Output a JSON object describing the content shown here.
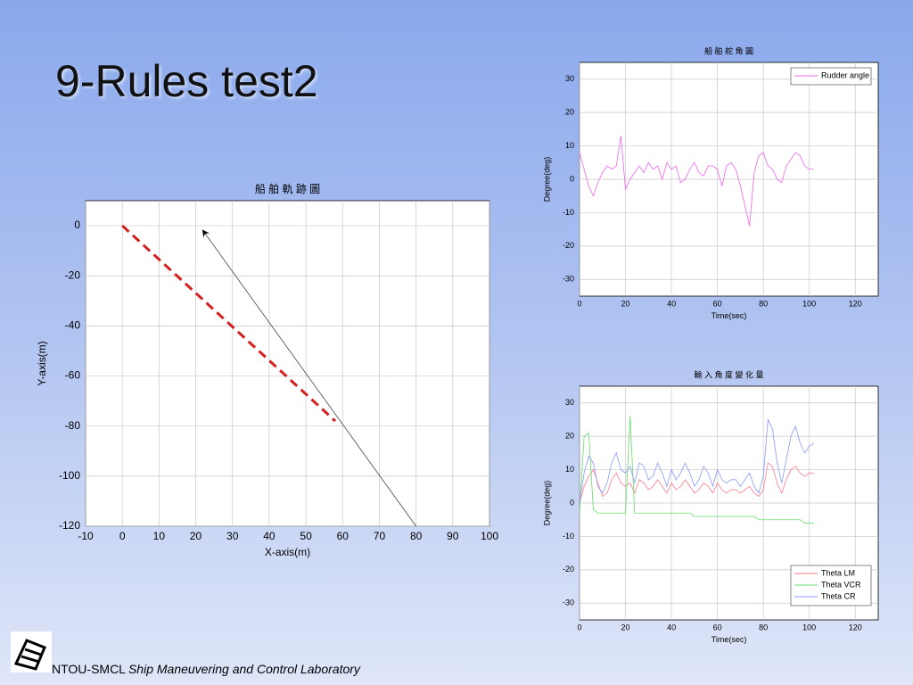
{
  "slide": {
    "title": "9-Rules test2",
    "footer_org": "NTOU-SMCL",
    "footer_lab": "Ship Maneuvering and Control Laboratory"
  },
  "chart_data": [
    {
      "type": "line",
      "title": "船 舶 軌 跡 圖",
      "xlabel": "X-axis(m)",
      "ylabel": "Y-axis(m)",
      "xlim": [
        -10,
        100
      ],
      "xticks": [
        -10,
        0,
        10,
        20,
        30,
        40,
        50,
        60,
        70,
        80,
        90,
        100
      ],
      "ylim": [
        -120,
        10
      ],
      "yticks": [
        -120,
        -100,
        -80,
        -60,
        -40,
        -20,
        0
      ],
      "grid": true,
      "series": [
        {
          "color": "#d62020",
          "line_style": "dashed",
          "x": [
            0,
            58
          ],
          "values": [
            0,
            -78
          ]
        },
        {
          "color": "#444444",
          "line_style": "solid",
          "arrow": true,
          "x": [
            80,
            22
          ],
          "values": [
            -120,
            -2
          ]
        }
      ]
    },
    {
      "type": "line",
      "title": "船 舶 舵 角 圖",
      "xlabel": "Time(sec)",
      "ylabel": "Degree(deg)",
      "xlim": [
        0,
        130
      ],
      "xticks": [
        0,
        20,
        40,
        60,
        80,
        100,
        120
      ],
      "ylim": [
        -35,
        35
      ],
      "yticks": [
        -30,
        -20,
        -10,
        0,
        10,
        20,
        30
      ],
      "grid": true,
      "legend": "top-right",
      "x": [
        0,
        2,
        4,
        6,
        8,
        10,
        12,
        14,
        16,
        18,
        20,
        22,
        24,
        26,
        28,
        30,
        32,
        34,
        36,
        38,
        40,
        42,
        44,
        46,
        48,
        50,
        52,
        54,
        56,
        58,
        60,
        62,
        64,
        66,
        68,
        70,
        72,
        74,
        76,
        78,
        80,
        82,
        84,
        86,
        88,
        90,
        92,
        94,
        96,
        98,
        100,
        102
      ],
      "series": [
        {
          "name": "Rudder angle",
          "color": "#ee66ee",
          "values": [
            8,
            3,
            -2,
            -5,
            -1,
            2,
            4,
            3,
            4,
            13,
            -3,
            0,
            2,
            4,
            2,
            5,
            3,
            4,
            0,
            5,
            3,
            4,
            -1,
            0,
            3,
            5,
            2,
            1,
            4,
            4,
            3,
            -2,
            4,
            5,
            3,
            -2,
            -8,
            -14,
            2,
            7,
            8,
            4,
            3,
            0,
            -1,
            4,
            6,
            8,
            7,
            4,
            3,
            3
          ]
        }
      ]
    },
    {
      "type": "line",
      "title": "輸 入 角 度 變 化 量",
      "xlabel": "Time(sec)",
      "ylabel": "Degree(deg)",
      "xlim": [
        0,
        130
      ],
      "xticks": [
        0,
        20,
        40,
        60,
        80,
        100,
        120
      ],
      "ylim": [
        -35,
        35
      ],
      "yticks": [
        -30,
        -20,
        -10,
        0,
        10,
        20,
        30
      ],
      "grid": true,
      "legend": "bottom-right",
      "x": [
        0,
        2,
        4,
        6,
        8,
        10,
        12,
        14,
        16,
        18,
        20,
        22,
        24,
        26,
        28,
        30,
        32,
        34,
        36,
        38,
        40,
        42,
        44,
        46,
        48,
        50,
        52,
        54,
        56,
        58,
        60,
        62,
        64,
        66,
        68,
        70,
        72,
        74,
        76,
        78,
        80,
        82,
        84,
        86,
        88,
        90,
        92,
        94,
        96,
        98,
        100,
        102
      ],
      "series": [
        {
          "name": "Theta LM",
          "color": "#ff7a8a",
          "values": [
            0,
            5,
            8,
            10,
            6,
            2,
            3,
            7,
            9,
            6,
            5,
            6,
            3,
            7,
            6,
            4,
            5,
            7,
            5,
            3,
            6,
            4,
            5,
            7,
            5,
            3,
            4,
            6,
            5,
            3,
            6,
            4,
            3,
            4,
            4,
            3,
            4,
            5,
            3,
            2,
            4,
            12,
            11,
            6,
            3,
            7,
            10,
            11,
            9,
            8,
            9,
            9
          ]
        },
        {
          "name": "Theta VCR",
          "color": "#66dd66",
          "values": [
            -3,
            20,
            21,
            -2,
            -3,
            -3,
            -3,
            -3,
            -3,
            -3,
            -3,
            26,
            -3,
            -3,
            -3,
            -3,
            -3,
            -3,
            -3,
            -3,
            -3,
            -3,
            -3,
            -3,
            -3,
            -4,
            -4,
            -4,
            -4,
            -4,
            -4,
            -4,
            -4,
            -4,
            -4,
            -4,
            -4,
            -4,
            -4,
            -5,
            -5,
            -5,
            -5,
            -5,
            -5,
            -5,
            -5,
            -5,
            -5,
            -6,
            -6,
            -6
          ]
        },
        {
          "name": "Theta CR",
          "color": "#8899ff",
          "values": [
            0,
            9,
            14,
            12,
            5,
            3,
            6,
            12,
            15,
            10,
            9,
            11,
            6,
            12,
            11,
            7,
            8,
            12,
            9,
            5,
            10,
            7,
            9,
            12,
            9,
            5,
            7,
            11,
            9,
            5,
            10,
            7,
            6,
            7,
            7,
            5,
            7,
            9,
            5,
            3,
            8,
            25,
            22,
            12,
            6,
            13,
            20,
            23,
            18,
            15,
            17,
            18
          ]
        }
      ]
    }
  ]
}
